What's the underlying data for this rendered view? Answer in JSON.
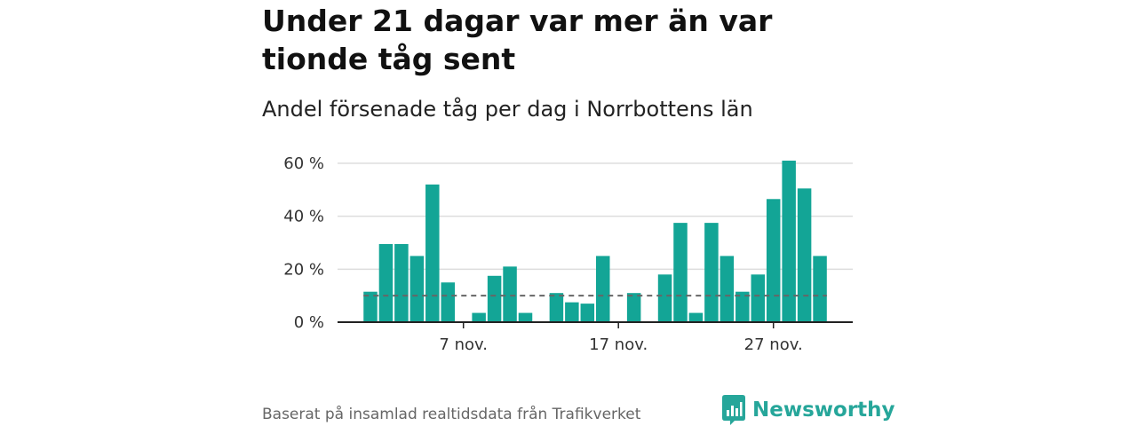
{
  "header": {
    "title": "Under 21 dagar var mer än var tionde tåg sent",
    "subtitle": "Andel försenade tåg per dag i Norrbottens län"
  },
  "footer": {
    "source": "Baserat på insamlad realtidsdata från Trafikverket",
    "brand": "Newsworthy"
  },
  "colors": {
    "bar": "#13a596",
    "reference_line": "#666666",
    "grid": "#dddddd",
    "brand": "#26a69a"
  },
  "chart_data": {
    "type": "bar",
    "title": "Andel försenade tåg per dag i Norrbottens län",
    "x_unit": "day of November",
    "days": [
      1,
      2,
      3,
      4,
      5,
      6,
      7,
      8,
      9,
      10,
      11,
      12,
      13,
      14,
      15,
      16,
      17,
      18,
      19,
      20,
      21,
      22,
      23,
      24,
      25,
      26,
      27,
      28,
      29,
      30
    ],
    "values": [
      11.5,
      29.5,
      29.5,
      25,
      52,
      15,
      0,
      3.5,
      17.5,
      21,
      3.5,
      0,
      11,
      7.5,
      7,
      25,
      0,
      11,
      0,
      18,
      37.5,
      3.5,
      37.5,
      25,
      11.5,
      18,
      46.5,
      61,
      50.5,
      25
    ],
    "reference_line": 10,
    "reference_style": "dashed",
    "y_ticks": [
      "0 %",
      "20 %",
      "40 %",
      "60 %"
    ],
    "y_tick_values": [
      0,
      20,
      40,
      60
    ],
    "ylim": [
      0,
      60
    ],
    "x_ticks": [
      {
        "day": 7,
        "label": "7 nov."
      },
      {
        "day": 17,
        "label": "17 nov."
      },
      {
        "day": 27,
        "label": "27 nov."
      }
    ],
    "grid": "horizontal"
  }
}
